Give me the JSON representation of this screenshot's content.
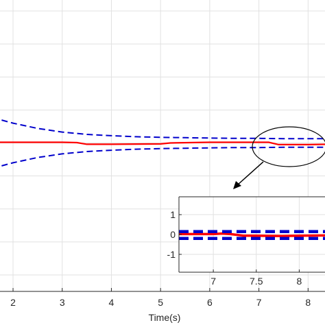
{
  "chart_data": [
    {
      "type": "line",
      "xlabel": "Time(s)",
      "ylabel": "",
      "xlim": [
        1.4,
        8.4
      ],
      "ylim": [
        -4.5,
        4.5
      ],
      "x_ticks": [
        2,
        3,
        4,
        5,
        6,
        7,
        8
      ],
      "grid": true,
      "series": [
        {
          "color": "#ff0000",
          "style": "solid",
          "x": [
            1.4,
            2.0,
            3.0,
            3.3,
            3.5,
            4.0,
            5.0,
            5.2,
            6.0,
            7.0,
            7.2,
            7.4,
            8.0,
            8.4
          ],
          "y": [
            0.02,
            0.02,
            0.02,
            0.01,
            -0.04,
            -0.04,
            -0.03,
            0.0,
            0.02,
            0.02,
            0.02,
            -0.05,
            -0.05,
            -0.04
          ]
        },
        {
          "color": "#0000cc",
          "style": "dashed",
          "x": [
            1.4,
            1.5,
            2.0,
            2.5,
            3.0,
            3.5,
            4.0,
            4.5,
            5.0,
            5.5,
            6.0,
            6.5,
            7.0,
            7.5,
            8.0,
            8.4
          ],
          "y": [
            0.88,
            0.8,
            0.6,
            0.44,
            0.33,
            0.26,
            0.22,
            0.19,
            0.17,
            0.16,
            0.15,
            0.14,
            0.14,
            0.13,
            0.13,
            0.13
          ]
        },
        {
          "color": "#0000cc",
          "style": "dashed",
          "x": [
            1.4,
            1.5,
            2.0,
            2.5,
            3.0,
            3.5,
            4.0,
            4.5,
            5.0,
            5.5,
            6.0,
            6.5,
            7.0,
            7.5,
            8.0,
            8.4
          ],
          "y": [
            -0.88,
            -0.8,
            -0.6,
            -0.44,
            -0.33,
            -0.26,
            -0.22,
            -0.19,
            -0.17,
            -0.16,
            -0.15,
            -0.14,
            -0.14,
            -0.13,
            -0.13,
            -0.13
          ]
        }
      ]
    },
    {
      "type": "line",
      "title": "",
      "xlim": [
        6.6,
        8.3
      ],
      "ylim": [
        -1.9,
        1.9
      ],
      "x_ticks": [
        7,
        7.5,
        8
      ],
      "x_tick_labels": [
        "7",
        "7.5",
        "8"
      ],
      "y_ticks": [
        1,
        0,
        -1
      ],
      "y_tick_labels": [
        "1",
        "0",
        "-1"
      ],
      "grid": true,
      "series": [
        {
          "color": "#ff0000",
          "style": "solid",
          "x": [
            6.6,
            7.0,
            7.1,
            7.2,
            7.35,
            7.5,
            7.8,
            8.0,
            8.3
          ],
          "y": [
            0.02,
            0.02,
            0.05,
            0.02,
            -0.06,
            -0.06,
            -0.08,
            -0.06,
            -0.05
          ]
        },
        {
          "color": "#0000cc",
          "style": "dashed",
          "x": [
            6.6,
            8.3
          ],
          "y": [
            0.15,
            0.15
          ]
        },
        {
          "color": "#0000cc",
          "style": "dashed",
          "x": [
            6.6,
            8.3
          ],
          "y": [
            -0.2,
            -0.2
          ]
        }
      ]
    }
  ]
}
